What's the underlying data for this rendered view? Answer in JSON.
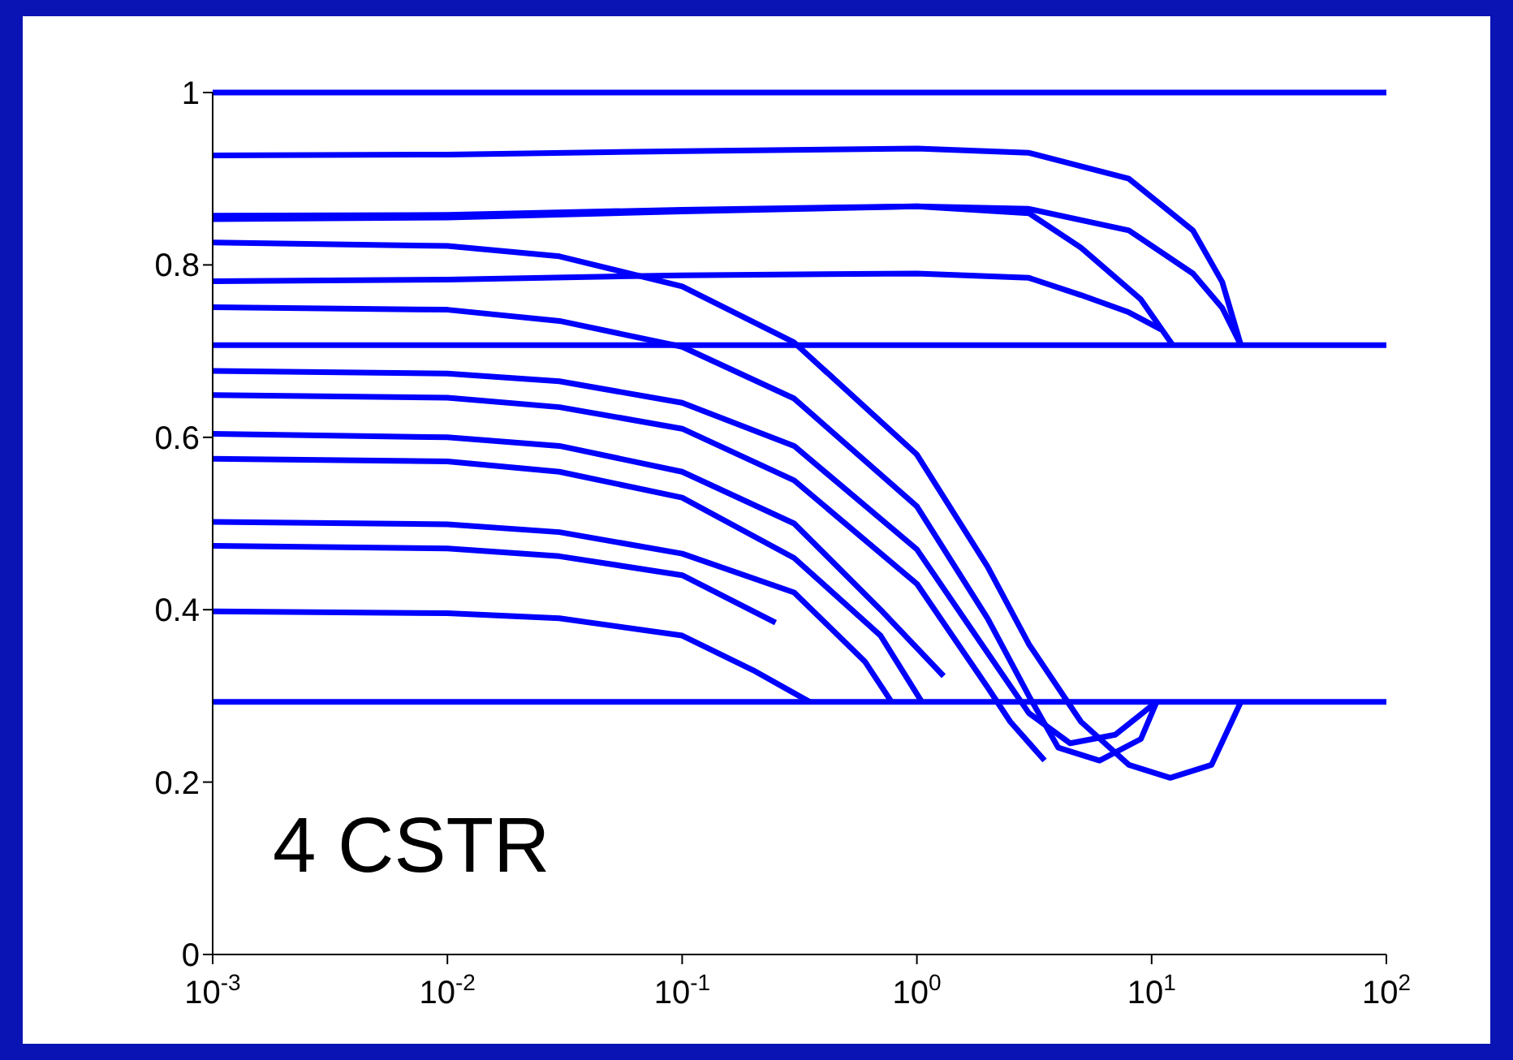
{
  "chart_data": {
    "type": "line",
    "log": "x",
    "marker": "none",
    "line_style": "solid",
    "xlim": [
      0.001,
      100
    ],
    "xticks": [
      {
        "value": 0.001,
        "label": "10$^{-3}$"
      },
      {
        "value": 0.01,
        "label": "10$^{-2}$"
      },
      {
        "value": 0.1,
        "label": "10$^{-1}$"
      },
      {
        "value": 1,
        "label": "10$^{0}$"
      },
      {
        "value": 10,
        "label": "10$^{1}$"
      },
      {
        "value": 100,
        "label": "10$^{2}$"
      }
    ],
    "ylim": [
      0,
      1
    ],
    "yticks": [
      0,
      0.2,
      0.4,
      0.6,
      0.8,
      1
    ],
    "annotations": [
      "4 CSTR"
    ],
    "series": [
      {
        "color": "#0000ff",
        "x": [
          0.001,
          100
        ],
        "values": [
          1,
          1
        ]
      },
      {
        "color": "#0000ff",
        "x": [
          0.001,
          100
        ],
        "values": [
          0.707,
          0.707
        ]
      },
      {
        "color": "#0000ff",
        "x": [
          0.001,
          100
        ],
        "values": [
          0.293,
          0.293
        ]
      },
      {
        "color": "#0000ff",
        "x": [
          0.001,
          0.01,
          0.1,
          1,
          3,
          8,
          15,
          20,
          24
        ],
        "values": [
          0.927,
          0.928,
          0.932,
          0.935,
          0.93,
          0.9,
          0.84,
          0.78,
          0.707
        ]
      },
      {
        "color": "#0000ff",
        "x": [
          0.001,
          0.01,
          0.1,
          1,
          3,
          5,
          9,
          12.3
        ],
        "values": [
          0.853,
          0.855,
          0.862,
          0.868,
          0.86,
          0.82,
          0.76,
          0.707
        ]
      },
      {
        "color": "#0000ff",
        "x": [
          0.001,
          0.01,
          0.1,
          1,
          3,
          8,
          15,
          20,
          24
        ],
        "values": [
          0.857,
          0.858,
          0.864,
          0.868,
          0.865,
          0.84,
          0.79,
          0.75,
          0.707
        ]
      },
      {
        "color": "#0000ff",
        "x": [
          0.001,
          0.01,
          0.1,
          1,
          3,
          5,
          8,
          11
        ],
        "values": [
          0.781,
          0.783,
          0.788,
          0.79,
          0.785,
          0.765,
          0.745,
          0.725
        ]
      },
      {
        "color": "#0000ff",
        "x": [
          0.001,
          0.01,
          0.03,
          0.1,
          0.3,
          1,
          2,
          3,
          5,
          8,
          12,
          18,
          24
        ],
        "values": [
          0.826,
          0.822,
          0.81,
          0.775,
          0.71,
          0.58,
          0.45,
          0.36,
          0.27,
          0.22,
          0.205,
          0.22,
          0.293
        ]
      },
      {
        "color": "#0000ff",
        "x": [
          0.001,
          0.01,
          0.03,
          0.1,
          0.3,
          1,
          2,
          3,
          4,
          6,
          9,
          10.5
        ],
        "values": [
          0.751,
          0.748,
          0.735,
          0.705,
          0.645,
          0.52,
          0.39,
          0.3,
          0.24,
          0.225,
          0.25,
          0.293
        ]
      },
      {
        "color": "#0000ff",
        "x": [
          0.001,
          0.01,
          0.03,
          0.1,
          0.3,
          1,
          2,
          3,
          4.5,
          7,
          10.5
        ],
        "values": [
          0.677,
          0.674,
          0.665,
          0.64,
          0.59,
          0.47,
          0.35,
          0.28,
          0.245,
          0.255,
          0.293
        ]
      },
      {
        "color": "#0000ff",
        "x": [
          0.001,
          0.01,
          0.03,
          0.1,
          0.3,
          1,
          2,
          2.5,
          3.5
        ],
        "values": [
          0.649,
          0.646,
          0.635,
          0.61,
          0.55,
          0.43,
          0.31,
          0.27,
          0.225
        ]
      },
      {
        "color": "#0000ff",
        "x": [
          0.001,
          0.01,
          0.03,
          0.1,
          0.3,
          0.7,
          1.3
        ],
        "values": [
          0.604,
          0.6,
          0.59,
          0.56,
          0.5,
          0.4,
          0.323
        ]
      },
      {
        "color": "#0000ff",
        "x": [
          0.001,
          0.01,
          0.03,
          0.1,
          0.3,
          0.7,
          1.05
        ],
        "values": [
          0.575,
          0.572,
          0.56,
          0.53,
          0.46,
          0.37,
          0.293
        ]
      },
      {
        "color": "#0000ff",
        "x": [
          0.001,
          0.01,
          0.03,
          0.1,
          0.3,
          0.6,
          0.78
        ],
        "values": [
          0.502,
          0.499,
          0.49,
          0.465,
          0.42,
          0.34,
          0.293
        ]
      },
      {
        "color": "#0000ff",
        "x": [
          0.001,
          0.01,
          0.03,
          0.1,
          0.25
        ],
        "values": [
          0.474,
          0.471,
          0.462,
          0.44,
          0.385
        ]
      },
      {
        "color": "#0000ff",
        "x": [
          0.001,
          0.01,
          0.03,
          0.1,
          0.2,
          0.35
        ],
        "values": [
          0.398,
          0.396,
          0.39,
          0.37,
          0.33,
          0.293
        ]
      }
    ]
  }
}
